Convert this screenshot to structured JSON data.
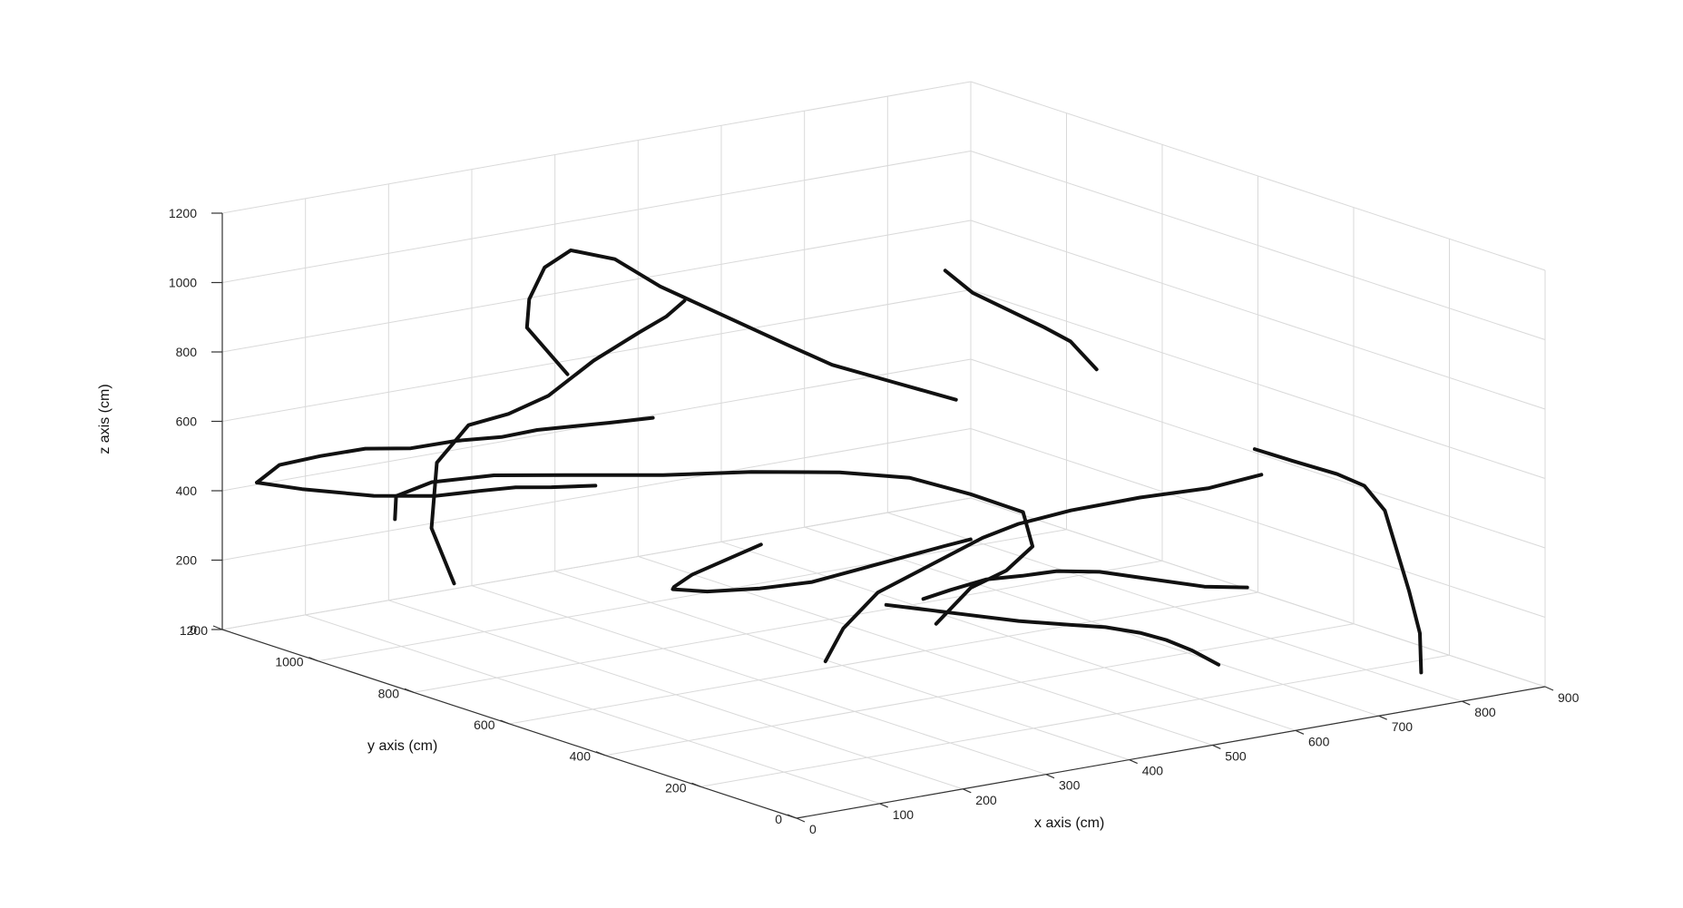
{
  "chart_data": {
    "type": "line3d",
    "xlabel": "x axis (cm)",
    "ylabel": "y axis (cm)",
    "zlabel": "z axis (cm)",
    "xlim": [
      0,
      900
    ],
    "ylim": [
      0,
      1200
    ],
    "zlim": [
      0,
      1200
    ],
    "x_ticks": [
      0,
      100,
      200,
      300,
      400,
      500,
      600,
      700,
      800,
      900
    ],
    "y_ticks": [
      0,
      200,
      400,
      600,
      800,
      1000,
      1200
    ],
    "z_ticks": [
      0,
      200,
      400,
      600,
      800,
      1000,
      1200
    ],
    "grid": true,
    "line_color": "#111111",
    "series": [
      {
        "points": [
          [
            300,
            1000,
            700
          ],
          [
            280,
            1050,
            820
          ],
          [
            300,
            1080,
            880
          ],
          [
            330,
            1100,
            950
          ],
          [
            350,
            1080,
            1000
          ],
          [
            380,
            1040,
            980
          ],
          [
            400,
            980,
            920
          ],
          [
            430,
            900,
            860
          ],
          [
            460,
            820,
            800
          ],
          [
            480,
            760,
            760
          ],
          [
            520,
            700,
            720
          ],
          [
            560,
            640,
            680
          ]
        ]
      },
      {
        "points": [
          [
            250,
            1150,
            50
          ],
          [
            240,
            1180,
            200
          ],
          [
            235,
            1160,
            400
          ],
          [
            250,
            1120,
            520
          ],
          [
            275,
            1080,
            560
          ],
          [
            300,
            1040,
            620
          ],
          [
            320,
            980,
            740
          ],
          [
            340,
            920,
            840
          ],
          [
            350,
            880,
            900
          ],
          [
            360,
            860,
            950
          ]
        ]
      },
      {
        "points": [
          [
            150,
            1100,
            300
          ],
          [
            140,
            1080,
            380
          ],
          [
            160,
            1040,
            430
          ],
          [
            200,
            980,
            460
          ],
          [
            240,
            900,
            480
          ],
          [
            300,
            800,
            500
          ],
          [
            360,
            720,
            520
          ],
          [
            420,
            640,
            530
          ],
          [
            470,
            580,
            520
          ],
          [
            520,
            540,
            470
          ],
          [
            560,
            500,
            420
          ],
          [
            560,
            480,
            330
          ],
          [
            540,
            500,
            260
          ],
          [
            520,
            540,
            200
          ],
          [
            490,
            560,
            100
          ]
        ]
      },
      {
        "points": [
          [
            30,
            1180,
            420
          ],
          [
            40,
            1150,
            480
          ],
          [
            60,
            1100,
            520
          ],
          [
            80,
            1040,
            560
          ],
          [
            100,
            980,
            580
          ],
          [
            120,
            920,
            620
          ],
          [
            140,
            860,
            650
          ],
          [
            160,
            820,
            680
          ],
          [
            180,
            780,
            700
          ],
          [
            200,
            740,
            720
          ],
          [
            230,
            700,
            740
          ]
        ]
      },
      {
        "points": [
          [
            30,
            1180,
            420
          ],
          [
            50,
            1120,
            420
          ],
          [
            90,
            1040,
            420
          ],
          [
            130,
            980,
            430
          ],
          [
            160,
            940,
            450
          ],
          [
            180,
            900,
            470
          ],
          [
            200,
            860,
            480
          ],
          [
            230,
            820,
            490
          ]
        ]
      },
      {
        "points": [
          [
            380,
            600,
            20
          ],
          [
            390,
            580,
            120
          ],
          [
            420,
            560,
            220
          ],
          [
            460,
            520,
            300
          ],
          [
            500,
            480,
            380
          ],
          [
            520,
            440,
            430
          ],
          [
            560,
            400,
            470
          ],
          [
            620,
            360,
            500
          ],
          [
            680,
            320,
            520
          ],
          [
            700,
            300,
            540
          ],
          [
            720,
            280,
            560
          ]
        ]
      },
      {
        "points": [
          [
            660,
            520,
            780
          ],
          [
            640,
            540,
            860
          ],
          [
            620,
            560,
            900
          ],
          [
            600,
            600,
            940
          ],
          [
            580,
            640,
            980
          ],
          [
            570,
            680,
            1030
          ]
        ]
      },
      {
        "points": [
          [
            820,
            120,
            20
          ],
          [
            830,
            140,
            120
          ],
          [
            840,
            180,
            220
          ],
          [
            860,
            240,
            300
          ],
          [
            880,
            300,
            380
          ],
          [
            890,
            360,
            420
          ],
          [
            880,
            400,
            440
          ],
          [
            860,
            460,
            460
          ],
          [
            850,
            520,
            470
          ]
        ]
      },
      {
        "points": [
          [
            440,
            500,
            220
          ],
          [
            450,
            460,
            260
          ],
          [
            470,
            420,
            300
          ],
          [
            490,
            380,
            320
          ],
          [
            520,
            360,
            330
          ],
          [
            560,
            340,
            320
          ],
          [
            600,
            300,
            300
          ],
          [
            640,
            260,
            280
          ],
          [
            680,
            240,
            270
          ]
        ]
      },
      {
        "points": [
          [
            430,
            560,
            180
          ],
          [
            460,
            520,
            170
          ],
          [
            490,
            480,
            160
          ],
          [
            520,
            440,
            150
          ],
          [
            560,
            400,
            140
          ],
          [
            590,
            380,
            130
          ],
          [
            620,
            360,
            110
          ],
          [
            640,
            340,
            90
          ],
          [
            660,
            320,
            60
          ],
          [
            680,
            300,
            20
          ]
        ]
      },
      {
        "points": [
          [
            360,
            700,
            320
          ],
          [
            330,
            720,
            280
          ],
          [
            300,
            740,
            240
          ],
          [
            290,
            760,
            200
          ],
          [
            300,
            780,
            180
          ],
          [
            330,
            760,
            170
          ],
          [
            370,
            720,
            180
          ],
          [
            410,
            680,
            200
          ],
          [
            440,
            640,
            240
          ],
          [
            470,
            600,
            280
          ],
          [
            500,
            560,
            320
          ],
          [
            520,
            540,
            340
          ]
        ]
      }
    ]
  }
}
